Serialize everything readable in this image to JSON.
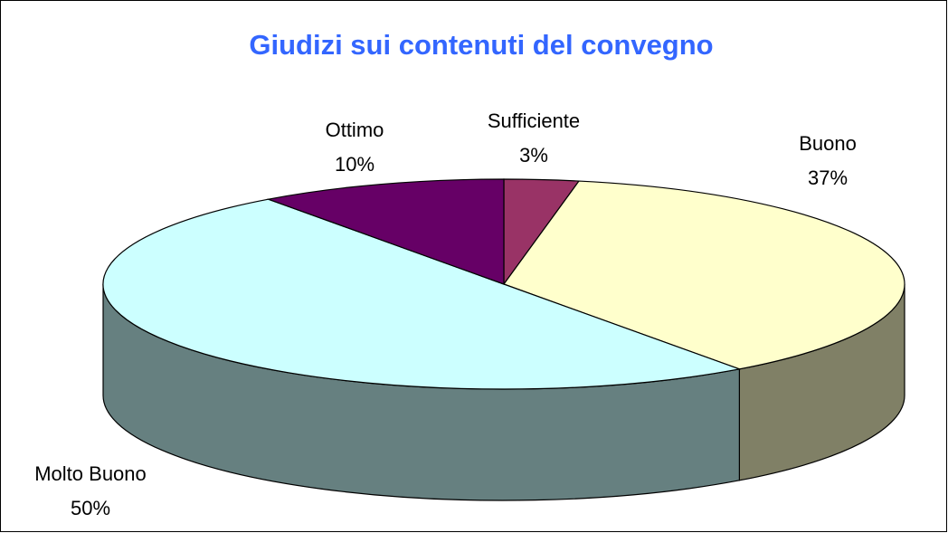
{
  "chart_data": {
    "type": "pie",
    "title": "Giudizi sui contenuti del convegno",
    "categories": [
      "Sufficiente",
      "Buono",
      "Molto Buono",
      "Ottimo"
    ],
    "values": [
      3,
      37,
      50,
      10
    ],
    "value_labels": [
      "3%",
      "37%",
      "50%",
      "10%"
    ],
    "colors": [
      "#993366",
      "#ffffcc",
      "#ccffff",
      "#660066"
    ],
    "side_colors": [
      "#4d1a33",
      "#808066",
      "#668080",
      "#330033"
    ]
  }
}
